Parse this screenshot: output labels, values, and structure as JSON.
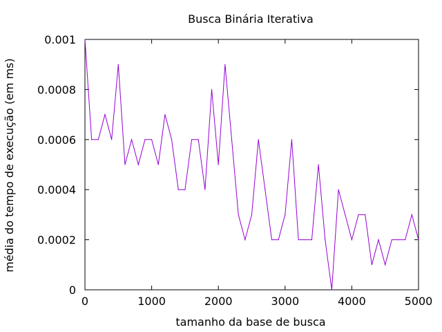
{
  "chart_data": {
    "type": "line",
    "title": "Busca Binária Iterativa",
    "xlabel": "tamanho da base de busca",
    "ylabel": "média do tempo de execução (em ms)",
    "xlim": [
      0,
      5000
    ],
    "ylim": [
      0,
      0.001
    ],
    "xticks": [
      0,
      1000,
      2000,
      3000,
      4000,
      5000
    ],
    "xtick_labels": [
      "0",
      "1000",
      "2000",
      "3000",
      "4000",
      "5000"
    ],
    "yticks": [
      0,
      0.0002,
      0.0004,
      0.0006,
      0.0008,
      0.001
    ],
    "ytick_labels": [
      "0",
      "0.0002",
      "0.0004",
      "0.0006",
      "0.0008",
      "0.001"
    ],
    "grid": false,
    "line_color": "#9400d3",
    "x": [
      0,
      100,
      200,
      300,
      400,
      500,
      600,
      700,
      800,
      900,
      1000,
      1100,
      1200,
      1300,
      1400,
      1500,
      1600,
      1700,
      1800,
      1900,
      2000,
      2100,
      2200,
      2300,
      2400,
      2500,
      2600,
      2700,
      2800,
      2900,
      3000,
      3100,
      3200,
      3300,
      3400,
      3500,
      3600,
      3700,
      3800,
      3900,
      4000,
      4100,
      4200,
      4300,
      4400,
      4500,
      4600,
      4700,
      4800,
      4900,
      5000
    ],
    "y": [
      0.001,
      0.0006,
      0.0006,
      0.0007,
      0.0006,
      0.0009,
      0.0005,
      0.0006,
      0.0005,
      0.0006,
      0.0006,
      0.0005,
      0.0007,
      0.0006,
      0.0004,
      0.0004,
      0.0006,
      0.0006,
      0.0004,
      0.0008,
      0.0005,
      0.0009,
      0.0006,
      0.0003,
      0.0002,
      0.0003,
      0.0006,
      0.0004,
      0.0002,
      0.0002,
      0.0003,
      0.0006,
      0.0002,
      0.0002,
      0.0002,
      0.0005,
      0.0002,
      0.0,
      0.0004,
      0.0003,
      0.0002,
      0.0003,
      0.0003,
      0.0001,
      0.0002,
      0.0001,
      0.0002,
      0.0002,
      0.0002,
      0.0003,
      0.0002
    ]
  }
}
